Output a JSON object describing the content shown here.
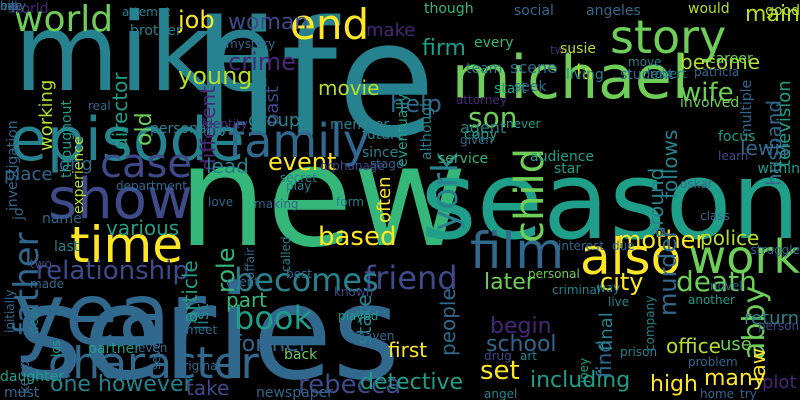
{
  "word_cloud": {
    "palette": [
      "#440154",
      "#482777",
      "#3e4a89",
      "#31688e",
      "#26828e",
      "#1f9e89",
      "#35b779",
      "#6ece58",
      "#b5de2b",
      "#fde725"
    ],
    "words": [
      "life",
      "series",
      "new",
      "mike",
      "season",
      "year",
      "episode",
      "michael",
      "story",
      "time",
      "show",
      "also",
      "work",
      "family",
      "character",
      "film",
      "end",
      "world",
      "child",
      "case",
      "friend",
      "becomes",
      "book",
      "father",
      "york",
      "rebecca",
      "relationship",
      "set",
      "abby",
      "death",
      "based",
      "mother",
      "city",
      "son",
      "wife",
      "help",
      "crime",
      "woman",
      "job",
      "young",
      "role",
      "event",
      "article",
      "murder",
      "police",
      "later",
      "school",
      "detective",
      "including",
      "high",
      "many",
      "however",
      "one",
      "take",
      "former",
      "firm",
      "main",
      "become",
      "good",
      "la",
      "make",
      "old",
      "often",
      "around",
      "follows",
      "husband",
      "television",
      "lewis",
      "law",
      "plot",
      "return",
      "office",
      "first",
      "people",
      "state",
      "begin",
      "find",
      "final",
      "use",
      "part",
      "list",
      "movie",
      "past",
      "group",
      "director",
      "different",
      "working",
      "world",
      "various",
      "lead",
      "place",
      "long",
      "career",
      "agent",
      "team",
      "scene",
      "living",
      "student",
      "involved",
      "multiple",
      "would",
      "angeles",
      "though",
      "social",
      "every",
      "brother",
      "throughout",
      "investigation",
      "experience",
      "personality",
      "identity",
      "member",
      "future",
      "since",
      "stage",
      "although",
      "eventually",
      "attorney",
      "twin",
      "start",
      "seek",
      "susie",
      "copy",
      "given",
      "service",
      "audience",
      "star",
      "focus",
      "learn",
      "within",
      "oskar",
      "patricia",
      "robert",
      "move",
      "never",
      "department",
      "orphanage",
      "secret",
      "play",
      "known",
      "called",
      "affair",
      "best",
      "client",
      "meet",
      "love",
      "making",
      "form",
      "jo",
      "name",
      "last",
      "two",
      "made",
      "initially",
      "deal",
      "los",
      "keep",
      "must",
      "daughter",
      "partner",
      "even",
      "several",
      "original",
      "newspaper",
      "back",
      "played",
      "heaven",
      "drug",
      "art",
      "angel",
      "joey",
      "prison",
      "company",
      "another",
      "problem",
      "person",
      "home",
      "try",
      "personal",
      "criminal",
      "live",
      "way",
      "interest",
      "due",
      "novel",
      "struggle",
      "class",
      "real",
      "attempt",
      "mystery",
      "ex",
      "bill",
      "age",
      "may"
    ]
  }
}
